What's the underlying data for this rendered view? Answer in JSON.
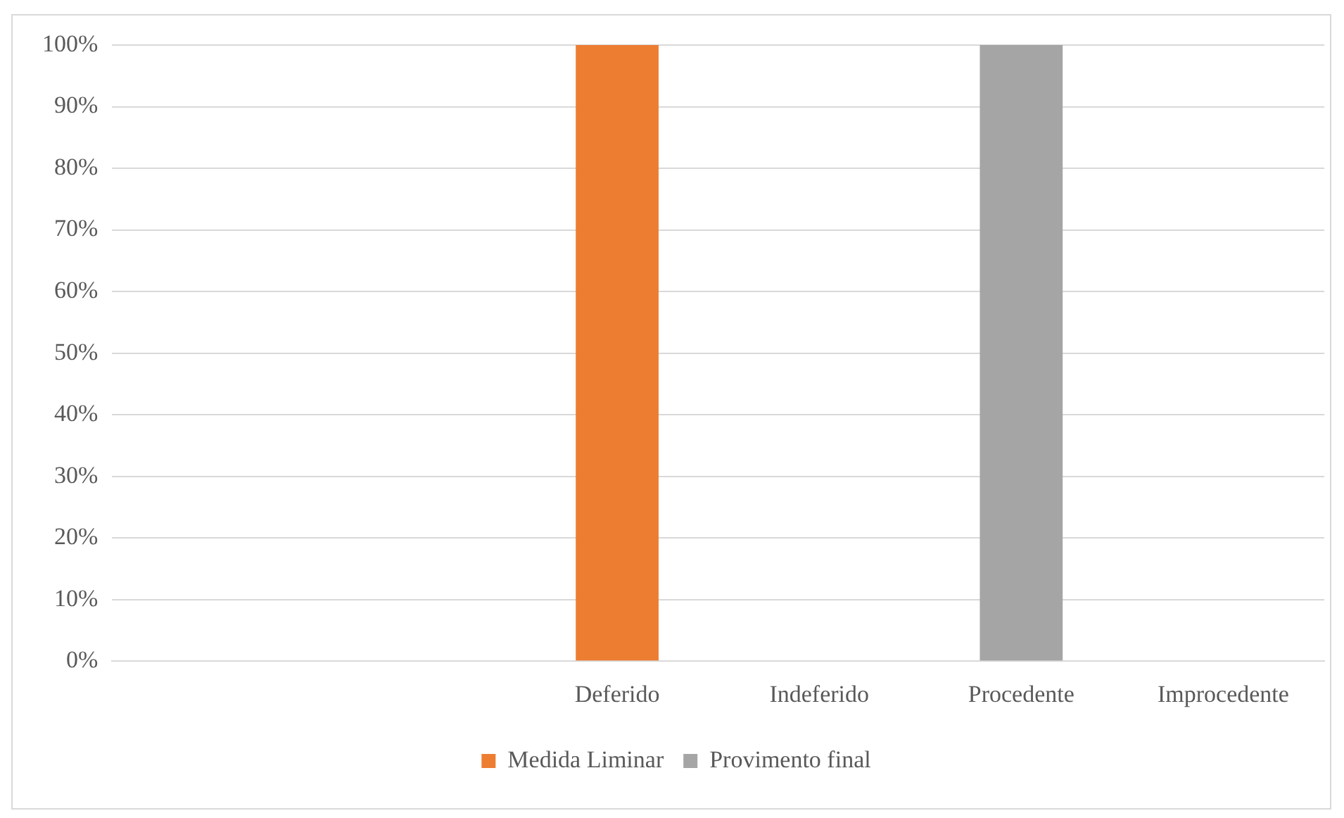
{
  "chart_data": {
    "type": "bar",
    "stacked": true,
    "categories": [
      null,
      null,
      "Deferido",
      "Indeferido",
      "Procedente",
      "Improcedente"
    ],
    "series": [
      {
        "name": "Medida Liminar",
        "color": "#ed7d31",
        "values": [
          null,
          null,
          100,
          0,
          null,
          null
        ]
      },
      {
        "name": "Provimento final",
        "color": "#a5a5a5",
        "values": [
          null,
          null,
          null,
          null,
          100,
          0
        ]
      }
    ],
    "ylim": [
      0,
      100
    ],
    "yticks": [
      {
        "value": 0,
        "label": "0%"
      },
      {
        "value": 10,
        "label": "10%"
      },
      {
        "value": 20,
        "label": "20%"
      },
      {
        "value": 30,
        "label": "30%"
      },
      {
        "value": 40,
        "label": "40%"
      },
      {
        "value": 50,
        "label": "50%"
      },
      {
        "value": 60,
        "label": "60%"
      },
      {
        "value": 70,
        "label": "70%"
      },
      {
        "value": 80,
        "label": "80%"
      },
      {
        "value": 90,
        "label": "90%"
      },
      {
        "value": 100,
        "label": "100%"
      }
    ],
    "grid": "y",
    "legend": "bottom"
  }
}
